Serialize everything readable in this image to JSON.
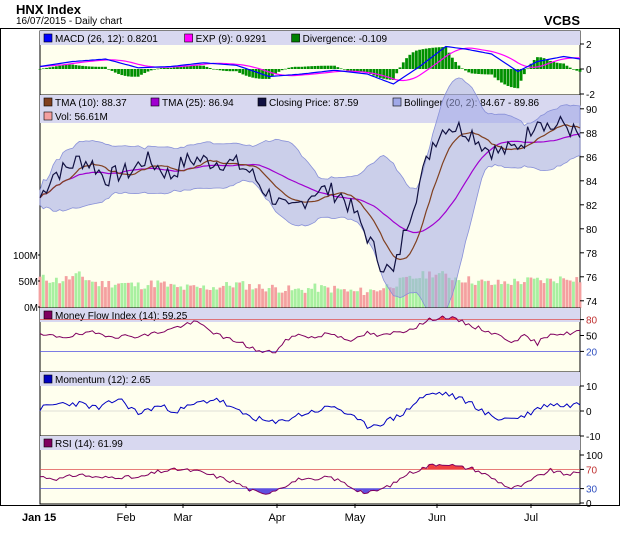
{
  "header": {
    "title": "HNX Index",
    "subtitle": "16/07/2015 - Daily chart",
    "brand": "VCBS"
  },
  "chart_data": {
    "type": "line",
    "x_tick_labels": [
      "Jan 15",
      "Feb",
      "Mar",
      "Apr",
      "May",
      "Jun",
      "Jul"
    ],
    "panels": {
      "macd": {
        "legend": [
          {
            "key": "macd",
            "label": "MACD (26, 12): 0.8201",
            "color": "#0000ff"
          },
          {
            "key": "exp",
            "label": "EXP (9): 0.9291",
            "color": "#ff00ff"
          },
          {
            "key": "div",
            "label": "Divergence: -0.109",
            "color": "#008000"
          }
        ],
        "ylim": [
          -2,
          2
        ],
        "y_ticks": [
          "2",
          "0",
          "-2"
        ]
      },
      "price": {
        "legend": [
          {
            "key": "tma10",
            "label": "TMA (10): 88.37",
            "color": "#804020"
          },
          {
            "key": "tma25",
            "label": "TMA (25): 86.94",
            "color": "#a000d0"
          },
          {
            "key": "close",
            "label": "Closing Price: 87.59",
            "color": "#101040"
          },
          {
            "key": "boll",
            "label": "Bollinger (20, 2): 84.67 - 89.86",
            "color": "#a0a8e8"
          },
          {
            "key": "vol",
            "label": "Vol: 56.61M",
            "color": "#f4a0a0"
          }
        ],
        "ylim": [
          74,
          90
        ],
        "y_ticks": [
          "90",
          "88",
          "86",
          "84",
          "82",
          "80",
          "78",
          "76",
          "74"
        ],
        "volume_ticks": [
          "100M",
          "50M",
          "0M"
        ],
        "volume_max": 150,
        "close_knots": [
          [
            0,
            82.6
          ],
          [
            4,
            84.6
          ],
          [
            8,
            85.0
          ],
          [
            12,
            85.8
          ],
          [
            16,
            85.4
          ],
          [
            20,
            84.2
          ],
          [
            24,
            84.6
          ],
          [
            28,
            84.8
          ],
          [
            32,
            85.8
          ],
          [
            36,
            85.2
          ],
          [
            40,
            84.4
          ],
          [
            44,
            85.6
          ],
          [
            48,
            85.8
          ],
          [
            52,
            85.6
          ],
          [
            56,
            85.6
          ],
          [
            60,
            85.4
          ],
          [
            64,
            84.8
          ],
          [
            68,
            83.4
          ],
          [
            72,
            82.4
          ],
          [
            76,
            81.4
          ],
          [
            80,
            82.2
          ],
          [
            84,
            83.2
          ],
          [
            88,
            83.2
          ],
          [
            92,
            82.8
          ],
          [
            96,
            81.4
          ],
          [
            100,
            79.4
          ],
          [
            104,
            77.2
          ],
          [
            108,
            76.2
          ],
          [
            112,
            80.4
          ],
          [
            116,
            83.8
          ],
          [
            120,
            87.2
          ],
          [
            124,
            88.6
          ],
          [
            128,
            88.4
          ],
          [
            132,
            88.0
          ],
          [
            136,
            86.8
          ],
          [
            140,
            86.4
          ],
          [
            144,
            86.6
          ],
          [
            148,
            87.4
          ],
          [
            152,
            89.4
          ],
          [
            156,
            88.4
          ],
          [
            160,
            88.8
          ],
          [
            165,
            87.6
          ]
        ],
        "volume_knots": [
          [
            0,
            60
          ],
          [
            6,
            55
          ],
          [
            12,
            65
          ],
          [
            18,
            48
          ],
          [
            24,
            50
          ],
          [
            30,
            45
          ],
          [
            36,
            50
          ],
          [
            42,
            40
          ],
          [
            48,
            40
          ],
          [
            54,
            42
          ],
          [
            60,
            48
          ],
          [
            66,
            42
          ],
          [
            72,
            40
          ],
          [
            78,
            35
          ],
          [
            84,
            40
          ],
          [
            90,
            38
          ],
          [
            96,
            32
          ],
          [
            102,
            35
          ],
          [
            108,
            48
          ],
          [
            114,
            60
          ],
          [
            120,
            70
          ],
          [
            126,
            62
          ],
          [
            132,
            55
          ],
          [
            138,
            48
          ],
          [
            144,
            52
          ],
          [
            150,
            55
          ],
          [
            156,
            55
          ],
          [
            162,
            62
          ],
          [
            165,
            57
          ]
        ]
      },
      "mfi": {
        "legend": [
          {
            "key": "mfi",
            "label": "Money Flow Index (14): 59.25",
            "color": "#800060"
          }
        ],
        "ylim": [
          0,
          100
        ],
        "y_ticks": [
          "80",
          "50",
          "20"
        ],
        "thresholds": [
          80,
          20
        ],
        "knots": [
          [
            0,
            50
          ],
          [
            8,
            48
          ],
          [
            16,
            55
          ],
          [
            24,
            48
          ],
          [
            32,
            50
          ],
          [
            40,
            62
          ],
          [
            44,
            70
          ],
          [
            48,
            75
          ],
          [
            52,
            60
          ],
          [
            56,
            45
          ],
          [
            60,
            40
          ],
          [
            64,
            28
          ],
          [
            68,
            18
          ],
          [
            72,
            20
          ],
          [
            76,
            45
          ],
          [
            80,
            52
          ],
          [
            84,
            45
          ],
          [
            88,
            55
          ],
          [
            92,
            48
          ],
          [
            96,
            40
          ],
          [
            100,
            55
          ],
          [
            104,
            48
          ],
          [
            108,
            55
          ],
          [
            112,
            60
          ],
          [
            116,
            70
          ],
          [
            120,
            82
          ],
          [
            124,
            85
          ],
          [
            128,
            78
          ],
          [
            132,
            68
          ],
          [
            136,
            60
          ],
          [
            140,
            50
          ],
          [
            144,
            40
          ],
          [
            148,
            48
          ],
          [
            152,
            35
          ],
          [
            156,
            55
          ],
          [
            160,
            52
          ],
          [
            165,
            59
          ]
        ]
      },
      "momentum": {
        "legend": [
          {
            "key": "mom",
            "label": "Momentum (12): 2.65",
            "color": "#0000c0"
          }
        ],
        "ylim": [
          -10,
          10
        ],
        "y_ticks": [
          "10",
          "0",
          "-10"
        ],
        "knots": [
          [
            0,
            1
          ],
          [
            6,
            3
          ],
          [
            12,
            3
          ],
          [
            18,
            1
          ],
          [
            24,
            5
          ],
          [
            30,
            -1
          ],
          [
            36,
            2
          ],
          [
            42,
            0
          ],
          [
            48,
            3
          ],
          [
            54,
            5
          ],
          [
            60,
            0
          ],
          [
            66,
            -3
          ],
          [
            72,
            -5
          ],
          [
            78,
            -2
          ],
          [
            84,
            0
          ],
          [
            90,
            2
          ],
          [
            96,
            -3
          ],
          [
            100,
            -6
          ],
          [
            104,
            -5
          ],
          [
            108,
            -3
          ],
          [
            112,
            0
          ],
          [
            116,
            5
          ],
          [
            120,
            7
          ],
          [
            124,
            7
          ],
          [
            128,
            5
          ],
          [
            132,
            3
          ],
          [
            136,
            -1
          ],
          [
            140,
            -3
          ],
          [
            144,
            -3
          ],
          [
            148,
            -2
          ],
          [
            152,
            1
          ],
          [
            156,
            3
          ],
          [
            160,
            2
          ],
          [
            165,
            3
          ]
        ]
      },
      "rsi": {
        "legend": [
          {
            "key": "rsi",
            "label": "RSI (14): 61.99",
            "color": "#800060"
          }
        ],
        "ylim": [
          0,
          100
        ],
        "y_ticks": [
          "100",
          "70",
          "30",
          "0"
        ],
        "thresholds": [
          70,
          30
        ],
        "knots": [
          [
            0,
            55
          ],
          [
            6,
            50
          ],
          [
            12,
            60
          ],
          [
            18,
            52
          ],
          [
            24,
            55
          ],
          [
            30,
            52
          ],
          [
            36,
            65
          ],
          [
            42,
            70
          ],
          [
            48,
            66
          ],
          [
            54,
            55
          ],
          [
            60,
            42
          ],
          [
            64,
            28
          ],
          [
            68,
            18
          ],
          [
            72,
            28
          ],
          [
            76,
            40
          ],
          [
            80,
            52
          ],
          [
            84,
            45
          ],
          [
            88,
            55
          ],
          [
            92,
            45
          ],
          [
            96,
            30
          ],
          [
            100,
            20
          ],
          [
            104,
            28
          ],
          [
            108,
            40
          ],
          [
            112,
            60
          ],
          [
            116,
            70
          ],
          [
            120,
            80
          ],
          [
            124,
            82
          ],
          [
            128,
            75
          ],
          [
            132,
            72
          ],
          [
            136,
            60
          ],
          [
            140,
            45
          ],
          [
            144,
            30
          ],
          [
            148,
            38
          ],
          [
            152,
            55
          ],
          [
            156,
            68
          ],
          [
            160,
            60
          ],
          [
            165,
            62
          ]
        ]
      }
    }
  }
}
